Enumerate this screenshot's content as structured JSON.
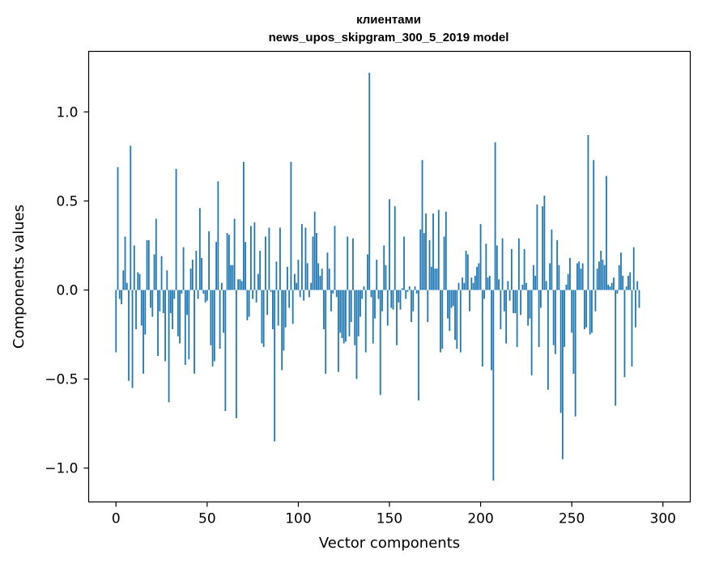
{
  "chart_data": {
    "type": "bar",
    "title_line1": "клиентами",
    "title_line2": "news_upos_skipgram_300_5_2019 model",
    "xlabel": "Vector components",
    "ylabel": "Components values",
    "xlim": [
      -15,
      315
    ],
    "ylim": [
      -1.19,
      1.34
    ],
    "xticks": [
      0,
      50,
      100,
      150,
      200,
      250,
      300
    ],
    "xtick_labels": [
      "0",
      "50",
      "100",
      "150",
      "200",
      "250",
      "300"
    ],
    "yticks": [
      -1.0,
      -0.5,
      0.0,
      0.5,
      1.0
    ],
    "ytick_labels": [
      "−1.0",
      "−0.5",
      "0.0",
      "0.5",
      "1.0"
    ],
    "bar_color": "#1f77b4",
    "values": [
      -0.35,
      0.69,
      -0.05,
      -0.08,
      0.11,
      0.3,
      0.04,
      -0.51,
      0.81,
      -0.55,
      0.25,
      -0.22,
      0.1,
      0.09,
      -0.2,
      -0.47,
      -0.25,
      0.28,
      0.28,
      -0.1,
      -0.15,
      0.2,
      0.4,
      -0.37,
      -0.12,
      0.19,
      -0.13,
      -0.4,
      0.11,
      -0.63,
      -0.13,
      -0.22,
      -0.05,
      0.68,
      -0.26,
      -0.3,
      -0.02,
      0.24,
      -0.42,
      -0.14,
      -0.39,
      0.12,
      0.17,
      -0.47,
      0.22,
      -0.05,
      0.46,
      0.18,
      -0.02,
      -0.07,
      -0.06,
      0.33,
      -0.31,
      -0.43,
      -0.4,
      0.27,
      0.61,
      -0.33,
      0.04,
      -0.24,
      -0.68,
      0.32,
      0.31,
      0.14,
      0.14,
      0.4,
      -0.72,
      0.06,
      0.06,
      0.05,
      0.72,
      0.27,
      -0.17,
      -0.15,
      0.36,
      -0.05,
      0.38,
      -0.07,
      0.09,
      0.22,
      -0.3,
      -0.32,
      0.3,
      -0.14,
      0.35,
      -0.01,
      -0.22,
      -0.85,
      0.16,
      -0.2,
      0.35,
      -0.45,
      -0.34,
      -0.21,
      0.13,
      -0.1,
      0.72,
      -0.19,
      0.09,
      0.04,
      0.17,
      -0.04,
      0.37,
      -0.06,
      0.35,
      0.15,
      -0.04,
      0.04,
      0.3,
      0.44,
      0.32,
      0.15,
      0.08,
      0.12,
      -0.22,
      -0.47,
      0.21,
      0.12,
      -0.12,
      -0.02,
      0.36,
      -0.04,
      -0.46,
      -0.24,
      -0.27,
      -0.3,
      -0.29,
      0.3,
      -0.26,
      -0.18,
      0.29,
      -0.31,
      -0.5,
      -0.26,
      -0.15,
      -0.05,
      0.02,
      -0.35,
      0.2,
      1.22,
      -0.04,
      -0.3,
      -0.16,
      0.17,
      -0.05,
      -0.59,
      -0.12,
      0.25,
      0.14,
      -0.2,
      0.51,
      -0.1,
      -0.11,
      0.47,
      -0.31,
      -0.07,
      -0.11,
      0.01,
      0.3,
      -0.05,
      -0.01,
      0.02,
      -0.18,
      -0.12,
      0.02,
      -0.02,
      -0.62,
      0.34,
      0.73,
      0.32,
      0.43,
      -0.18,
      0.28,
      0.13,
      0.43,
      0.12,
      0.12,
      0.45,
      -0.35,
      -0.33,
      0.3,
      0.44,
      -0.16,
      -0.23,
      -0.1,
      -0.09,
      -0.28,
      -0.33,
      0.04,
      -0.35,
      0.07,
      0.04,
      0.22,
      0.2,
      -0.12,
      0.07,
      0.04,
      0.08,
      0.13,
      0.15,
      0.37,
      -0.43,
      -0.05,
      0.26,
      0.07,
      0.08,
      -0.45,
      -1.07,
      0.83,
      0.25,
      0.06,
      -0.22,
      0.29,
      -0.12,
      -0.3,
      0.05,
      -0.06,
      0.23,
      -0.13,
      -0.13,
      -0.32,
      0.29,
      -0.14,
      0.03,
      0.23,
      0.04,
      -0.2,
      -0.16,
      -0.48,
      0.14,
      0.08,
      0.48,
      -0.32,
      -0.1,
      0.47,
      0.53,
      0.05,
      -0.56,
      0.15,
      0.34,
      -0.31,
      -0.36,
      0.28,
      0.14,
      -0.69,
      -0.95,
      -0.32,
      0.03,
      0.09,
      0.18,
      -0.24,
      -0.47,
      -0.71,
      0.15,
      0.16,
      0.12,
      0.15,
      -0.22,
      -0.21,
      0.87,
      -0.25,
      -0.24,
      0.73,
      -0.12,
      0.12,
      0.16,
      0.22,
      0.17,
      0.14,
      0.64,
      0.03,
      0.02,
      0.04,
      0.07,
      -0.65,
      -0.02,
      0.14,
      0.21,
      0.08,
      -0.49,
      0.02,
      0.08,
      0.1,
      -0.43,
      0.24,
      -0.21,
      0.05,
      -0.1
    ]
  }
}
